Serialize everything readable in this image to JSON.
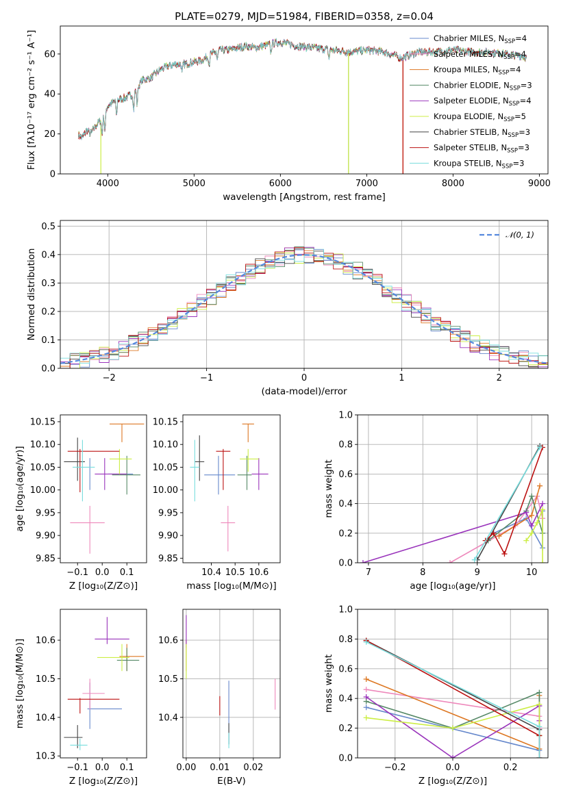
{
  "figure": {
    "title": "PLATE=0279, MJD=51984, FIBERID=0358, z=0.04"
  },
  "colors": {
    "c0": "#6688cc",
    "c1": "#ee88bb",
    "c2": "#dd7722",
    "c3": "#558866",
    "c4": "#9933bb",
    "c5": "#ccee44",
    "c6": "#444444",
    "c7": "#bb1111",
    "c8": "#77dddd",
    "dash": "#5588dd",
    "grid": "#b0b0b0"
  },
  "chart_data": [
    {
      "id": "spectrum",
      "type": "line",
      "xlabel": "wavelength [Angstrom, rest frame]",
      "ylabel": "Flux [fλ10⁻¹⁷ erg cm⁻² s⁻¹ A⁻¹]",
      "xlim": [
        3450,
        9100
      ],
      "ylim": [
        0,
        74
      ],
      "xticks": [
        4000,
        5000,
        6000,
        7000,
        8000,
        9000
      ],
      "yticks": [
        0,
        20,
        40,
        60
      ],
      "grid": false,
      "legend_position": "top-right",
      "continuum": {
        "x": [
          3650,
          3700,
          3760,
          3800,
          3860,
          3900,
          3950,
          4000,
          4100,
          4200,
          4300,
          4400,
          4500,
          4600,
          4700,
          4800,
          4900,
          5000,
          5100,
          5200,
          5300,
          5400,
          5500,
          5600,
          5700,
          5800,
          5900,
          6000,
          6200,
          6400,
          6600,
          6800,
          7000,
          7200,
          7400,
          7600,
          7800,
          8000,
          8200,
          8400,
          8600,
          8800,
          8850
        ],
        "y": [
          20,
          18,
          22,
          20,
          24,
          26,
          28,
          34,
          37,
          38,
          40,
          47,
          48,
          52,
          54,
          55,
          55,
          56,
          57,
          60,
          62,
          62,
          63,
          64,
          63,
          64,
          65,
          66,
          64,
          63,
          62,
          61,
          62,
          61,
          58,
          61,
          61,
          62,
          61,
          61,
          60,
          59,
          58
        ]
      },
      "dropouts": [
        {
          "series": 5,
          "x": 3920
        },
        {
          "series": 5,
          "x": 6790
        },
        {
          "series": 3,
          "x": 6790
        },
        {
          "series": 7,
          "x": 7420
        },
        {
          "series": 2,
          "x": 7420
        }
      ],
      "series": [
        {
          "name": "Chabrier MILES, N_SSP=4",
          "color": "c0"
        },
        {
          "name": "Salpeter MILES, N_SSP=4",
          "color": "c1"
        },
        {
          "name": "Kroupa MILES, N_SSP=4",
          "color": "c2"
        },
        {
          "name": "Chabrier ELODIE, N_SSP=3",
          "color": "c3"
        },
        {
          "name": "Salpeter ELODIE, N_SSP=4",
          "color": "c4"
        },
        {
          "name": "Kroupa ELODIE, N_SSP=5",
          "color": "c5"
        },
        {
          "name": "Chabrier STELIB, N_SSP=3",
          "color": "c6"
        },
        {
          "name": "Salpeter STELIB, N_SSP=3",
          "color": "c7"
        },
        {
          "name": "Kroupa STELIB, N_SSP=3",
          "color": "c8"
        }
      ],
      "legend": [
        {
          "pre": "Chabrier MILES, N",
          "sub": "SSP",
          "post": "=4",
          "color": "c0"
        },
        {
          "pre": "Salpeter MILES, N",
          "sub": "SSP",
          "post": "=4",
          "color": "c1"
        },
        {
          "pre": "Kroupa MILES, N",
          "sub": "SSP",
          "post": "=4",
          "color": "c2"
        },
        {
          "pre": "Chabrier ELODIE, N",
          "sub": "SSP",
          "post": "=3",
          "color": "c3"
        },
        {
          "pre": "Salpeter ELODIE, N",
          "sub": "SSP",
          "post": "=4",
          "color": "c4"
        },
        {
          "pre": "Kroupa ELODIE, N",
          "sub": "SSP",
          "post": "=5",
          "color": "c5"
        },
        {
          "pre": "Chabrier STELIB, N",
          "sub": "SSP",
          "post": "=3",
          "color": "c6"
        },
        {
          "pre": "Salpeter STELIB, N",
          "sub": "SSP",
          "post": "=3",
          "color": "c7"
        },
        {
          "pre": "Kroupa STELIB, N",
          "sub": "SSP",
          "post": "=3",
          "color": "c8"
        }
      ]
    },
    {
      "id": "residuals",
      "type": "histogram",
      "xlabel": "(data-model)/error",
      "ylabel": "Normed distribution",
      "xlim": [
        -2.5,
        2.5
      ],
      "ylim": [
        0,
        0.52
      ],
      "xticks": [
        -2,
        -1,
        0,
        1,
        2
      ],
      "xticklabels": [
        "−2",
        "−1",
        "0",
        "1",
        "2"
      ],
      "yticks": [
        0.0,
        0.1,
        0.2,
        0.3,
        0.4,
        0.5
      ],
      "yticklabels": [
        "0.0",
        "0.1",
        "0.2",
        "0.3",
        "0.4",
        "0.5"
      ],
      "grid": true,
      "bin_width": 0.1,
      "legend": {
        "label": "𝒩(0, 1)",
        "position": "top-right",
        "color": "dash"
      },
      "gaussian": {
        "mean": 0,
        "sigma": 1
      }
    },
    {
      "id": "age_vs_Z",
      "type": "errorbar",
      "xlabel": "Z [log₁₀(Z/Z⊙)]",
      "ylabel": "age  [log₁₀(age/yr)]",
      "xlim": [
        -0.17,
        0.18
      ],
      "ylim": [
        9.84,
        10.165
      ],
      "xticks": [
        -0.1,
        0.0,
        0.1
      ],
      "xticklabels": [
        "−0.1",
        "0.0",
        "0.1"
      ],
      "yticks": [
        9.85,
        9.9,
        9.95,
        10.0,
        10.05,
        10.1,
        10.15
      ],
      "yticklabels": [
        "9.85",
        "9.90",
        "9.95",
        "10.00",
        "10.05",
        "10.10",
        "10.15"
      ],
      "grid": false,
      "points": [
        {
          "color": "c0",
          "x": -0.05,
          "y": 10.035,
          "xl": 0.025,
          "xr": 0.125,
          "yl": 10.0,
          "yh": 10.07
        },
        {
          "color": "c1",
          "x": -0.05,
          "y": 9.928,
          "xl": -0.13,
          "xr": 0.01,
          "yl": 9.86,
          "yh": 9.965
        },
        {
          "color": "c2",
          "x": 0.08,
          "y": 10.145,
          "xl": 0.03,
          "xr": 0.17,
          "yl": 10.105,
          "yh": 10.145
        },
        {
          "color": "c3",
          "x": 0.1,
          "y": 10.033,
          "xl": 0.04,
          "xr": 0.155,
          "yl": 9.99,
          "yh": 10.075
        },
        {
          "color": "c4",
          "x": 0.01,
          "y": 10.035,
          "xl": -0.03,
          "xr": 0.1,
          "yl": 10.0,
          "yh": 10.07
        },
        {
          "color": "c5",
          "x": 0.07,
          "y": 10.068,
          "xl": 0.03,
          "xr": 0.12,
          "yl": 10.035,
          "yh": 10.09
        },
        {
          "color": "c6",
          "x": -0.1,
          "y": 10.062,
          "xl": -0.155,
          "xr": -0.07,
          "yl": 10.02,
          "yh": 10.115
        },
        {
          "color": "c7",
          "x": -0.09,
          "y": 10.085,
          "xl": -0.14,
          "xr": 0.07,
          "yl": 9.995,
          "yh": 10.09
        },
        {
          "color": "c8",
          "x": -0.08,
          "y": 10.05,
          "xl": -0.12,
          "xr": -0.03,
          "yl": 9.975,
          "yh": 10.11
        }
      ]
    },
    {
      "id": "age_vs_mass",
      "type": "errorbar",
      "xlabel": "mass [log₁₀(M/M⊙)]",
      "ylabel": "",
      "xlim": [
        10.28,
        10.69
      ],
      "ylim": [
        9.84,
        10.165
      ],
      "xticks": [
        10.4,
        10.5,
        10.6
      ],
      "xticklabels": [
        "10.4",
        "10.5",
        "10.6"
      ],
      "yticks": [
        9.85,
        9.9,
        9.95,
        10.0,
        10.05,
        10.1,
        10.15
      ],
      "yticklabels": [
        "9.85",
        "9.90",
        "9.95",
        "10.00",
        "10.05",
        "10.10",
        "10.15"
      ],
      "grid": false,
      "points": [
        {
          "color": "c0",
          "x": 10.43,
          "y": 10.033,
          "xl": 10.37,
          "xr": 10.5,
          "yl": 9.99,
          "yh": 10.075
        },
        {
          "color": "c1",
          "x": 10.47,
          "y": 9.928,
          "xl": 10.44,
          "xr": 10.5,
          "yl": 9.865,
          "yh": 9.965
        },
        {
          "color": "c2",
          "x": 10.555,
          "y": 10.145,
          "xl": 10.53,
          "xr": 10.58,
          "yl": 10.105,
          "yh": 10.145
        },
        {
          "color": "c3",
          "x": 10.55,
          "y": 10.033,
          "xl": 10.51,
          "xr": 10.57,
          "yl": 10.0,
          "yh": 10.075
        },
        {
          "color": "c4",
          "x": 10.6,
          "y": 10.035,
          "xl": 10.57,
          "xr": 10.64,
          "yl": 10.0,
          "yh": 10.07
        },
        {
          "color": "c5",
          "x": 10.555,
          "y": 10.068,
          "xl": 10.52,
          "xr": 10.6,
          "yl": 10.04,
          "yh": 10.09
        },
        {
          "color": "c6",
          "x": 10.35,
          "y": 10.062,
          "xl": 10.33,
          "xr": 10.37,
          "yl": 10.02,
          "yh": 10.12
        },
        {
          "color": "c7",
          "x": 10.45,
          "y": 10.085,
          "xl": 10.42,
          "xr": 10.48,
          "yl": 10.0,
          "yh": 10.09
        },
        {
          "color": "c8",
          "x": 10.33,
          "y": 10.05,
          "xl": 10.31,
          "xr": 10.35,
          "yl": 9.975,
          "yh": 10.11
        }
      ]
    },
    {
      "id": "weight_vs_age",
      "type": "line",
      "xlabel": "age  [log₁₀(age/yr)]",
      "ylabel": "mass weight",
      "xlim": [
        6.8,
        10.3
      ],
      "ylim": [
        0,
        1
      ],
      "xticks": [
        7,
        8,
        9,
        10
      ],
      "xticklabels": [
        "7",
        "8",
        "9",
        "10"
      ],
      "yticks": [
        0.0,
        0.2,
        0.4,
        0.6,
        0.8,
        1.0
      ],
      "yticklabels": [
        "0.0",
        "0.2",
        "0.4",
        "0.6",
        "0.8",
        "1.0"
      ],
      "grid": true,
      "series": [
        {
          "color": "c0",
          "x": [
            9.3,
            9.9,
            10.2,
            10.2
          ],
          "y": [
            0.2,
            0.3,
            0.1,
            0.35
          ]
        },
        {
          "color": "c1",
          "x": [
            8.5,
            9.7,
            10.1,
            10.2
          ],
          "y": [
            0.0,
            0.25,
            0.45,
            0.3
          ]
        },
        {
          "color": "c2",
          "x": [
            9.4,
            10.0,
            10.15
          ],
          "y": [
            0.18,
            0.32,
            0.52
          ]
        },
        {
          "color": "c3",
          "x": [
            9.2,
            9.9,
            10.0,
            10.2
          ],
          "y": [
            0.15,
            0.35,
            0.45,
            0.2
          ]
        },
        {
          "color": "c4",
          "x": [
            6.9,
            9.9,
            10.0,
            10.2
          ],
          "y": [
            0.0,
            0.34,
            0.25,
            0.4
          ]
        },
        {
          "color": "c5",
          "x": [
            9.9,
            10.0,
            10.1,
            10.2,
            10.2
          ],
          "y": [
            0.15,
            0.2,
            0.27,
            0.36,
            0.0
          ]
        },
        {
          "color": "c6",
          "x": [
            9.0,
            10.15
          ],
          "y": [
            0.02,
            0.79
          ]
        },
        {
          "color": "c7",
          "x": [
            9.15,
            9.3,
            9.5,
            10.2
          ],
          "y": [
            0.15,
            0.2,
            0.06,
            0.78
          ]
        },
        {
          "color": "c8",
          "x": [
            8.95,
            10.15
          ],
          "y": [
            0.02,
            0.78
          ]
        }
      ]
    },
    {
      "id": "mass_vs_Z",
      "type": "errorbar",
      "xlabel": "Z [log₁₀(Z/Z⊙)]",
      "ylabel": "mass [log₁₀(M/M⊙)]",
      "xlim": [
        -0.17,
        0.18
      ],
      "ylim": [
        10.295,
        10.68
      ],
      "xticks": [
        -0.1,
        0.0,
        0.1
      ],
      "xticklabels": [
        "−0.1",
        "0.0",
        "0.1"
      ],
      "yticks": [
        10.3,
        10.4,
        10.5,
        10.6
      ],
      "yticklabels": [
        "10.3",
        "10.4",
        "10.5",
        "10.6"
      ],
      "grid": false,
      "points": [
        {
          "color": "c0",
          "x": -0.05,
          "y": 10.422,
          "xl": -0.06,
          "xr": 0.08,
          "yl": 10.37,
          "yh": 10.49
        },
        {
          "color": "c1",
          "x": -0.05,
          "y": 10.462,
          "xl": -0.08,
          "xr": 0.01,
          "yl": 10.42,
          "yh": 10.5
        },
        {
          "color": "c2",
          "x": 0.1,
          "y": 10.558,
          "xl": 0.07,
          "xr": 0.17,
          "yl": 10.52,
          "yh": 10.59
        },
        {
          "color": "c3",
          "x": 0.1,
          "y": 10.548,
          "xl": 0.06,
          "xr": 0.15,
          "yl": 10.52,
          "yh": 10.58
        },
        {
          "color": "c4",
          "x": 0.02,
          "y": 10.603,
          "xl": -0.03,
          "xr": 0.11,
          "yl": 10.59,
          "yh": 10.66
        },
        {
          "color": "c5",
          "x": 0.08,
          "y": 10.555,
          "xl": -0.02,
          "xr": 0.11,
          "yl": 10.52,
          "yh": 10.59
        },
        {
          "color": "c6",
          "x": -0.1,
          "y": 10.348,
          "xl": -0.155,
          "xr": -0.08,
          "yl": 10.32,
          "yh": 10.38
        },
        {
          "color": "c7",
          "x": -0.09,
          "y": 10.447,
          "xl": -0.14,
          "xr": 0.07,
          "yl": 10.41,
          "yh": 10.45
        },
        {
          "color": "c8",
          "x": -0.09,
          "y": 10.328,
          "xl": -0.13,
          "xr": -0.06,
          "yl": 10.315,
          "yh": 10.345
        }
      ]
    },
    {
      "id": "mass_vs_EBV",
      "type": "errorbar",
      "xlabel": "E(B-V)",
      "ylabel": "",
      "xlim": [
        -0.001,
        0.028
      ],
      "ylim": [
        10.295,
        10.68
      ],
      "xticks": [
        0.0,
        0.01,
        0.02
      ],
      "xticklabels": [
        "0.00",
        "0.01",
        "0.02"
      ],
      "yticks": [
        10.4,
        10.5,
        10.6
      ],
      "yticklabels": [
        "10.4",
        "10.5",
        "10.6"
      ],
      "grid": true,
      "points": [
        {
          "color": "c0",
          "x": 0.0127,
          "y": 10.38,
          "xl": 0.0127,
          "xr": 0.0127,
          "yl": 10.33,
          "yh": 10.495
        },
        {
          "color": "c1",
          "x": 0.0265,
          "y": 10.46,
          "xl": 0.0265,
          "xr": 0.0265,
          "yl": 10.42,
          "yh": 10.5
        },
        {
          "color": "c2",
          "x": 0.0,
          "y": 10.56,
          "xl": 0.0,
          "xr": 0.0,
          "yl": 10.52,
          "yh": 10.6
        },
        {
          "color": "c4",
          "x": 0.0,
          "y": 10.62,
          "xl": 0.0,
          "xr": 0.0,
          "yl": 10.58,
          "yh": 10.665
        },
        {
          "color": "c5",
          "x": 0.0,
          "y": 10.545,
          "xl": 0.0,
          "xr": 0.0,
          "yl": 10.5,
          "yh": 10.59
        },
        {
          "color": "c6",
          "x": 0.0127,
          "y": 10.36,
          "xl": 0.0127,
          "xr": 0.0127,
          "yl": 10.33,
          "yh": 10.385
        },
        {
          "color": "c7",
          "x": 0.01,
          "y": 10.43,
          "xl": 0.01,
          "xr": 0.01,
          "yl": 10.405,
          "yh": 10.455
        },
        {
          "color": "c8",
          "x": 0.0127,
          "y": 10.34,
          "xl": 0.0127,
          "xr": 0.0127,
          "yl": 10.32,
          "yh": 10.36
        }
      ]
    },
    {
      "id": "weight_vs_Z",
      "type": "line",
      "xlabel": "Z [log₁₀(Z/Z⊙)]",
      "ylabel": "mass weight",
      "xlim": [
        -0.33,
        0.33
      ],
      "ylim": [
        0,
        1
      ],
      "xticks": [
        -0.2,
        0.0,
        0.2
      ],
      "xticklabels": [
        "−0.2",
        "0.0",
        "0.2"
      ],
      "yticks": [
        0.0,
        0.2,
        0.4,
        0.6,
        0.8,
        1.0
      ],
      "yticklabels": [
        "0.0",
        "0.2",
        "0.4",
        "0.6",
        "0.8",
        "1.0"
      ],
      "grid": true,
      "series": [
        {
          "color": "c0",
          "x": [
            -0.3,
            0.3,
            0.3
          ],
          "y": [
            0.34,
            0.05,
            0.2
          ]
        },
        {
          "color": "c1",
          "x": [
            -0.3,
            0.3,
            0.3
          ],
          "y": [
            0.46,
            0.28,
            0.2
          ]
        },
        {
          "color": "c2",
          "x": [
            -0.3,
            0.3,
            0.3
          ],
          "y": [
            0.53,
            0.06,
            0.42
          ]
        },
        {
          "color": "c3",
          "x": [
            -0.3,
            0.0,
            0.3,
            0.3
          ],
          "y": [
            0.38,
            0.2,
            0.44,
            0.15
          ]
        },
        {
          "color": "c4",
          "x": [
            -0.3,
            0.0,
            0.3,
            0.3
          ],
          "y": [
            0.41,
            0.0,
            0.35,
            0.25
          ]
        },
        {
          "color": "c5",
          "x": [
            -0.3,
            0.0,
            0.3,
            0.3
          ],
          "y": [
            0.27,
            0.2,
            0.36,
            0.15
          ]
        },
        {
          "color": "c6",
          "x": [
            -0.3,
            0.3,
            0.3
          ],
          "y": [
            0.79,
            0.19,
            0.0
          ]
        },
        {
          "color": "c7",
          "x": [
            -0.3,
            0.3,
            0.3
          ],
          "y": [
            0.79,
            0.15,
            0.0
          ]
        },
        {
          "color": "c8",
          "x": [
            -0.3,
            0.3,
            0.3
          ],
          "y": [
            0.78,
            0.21,
            0.0
          ]
        }
      ]
    }
  ]
}
